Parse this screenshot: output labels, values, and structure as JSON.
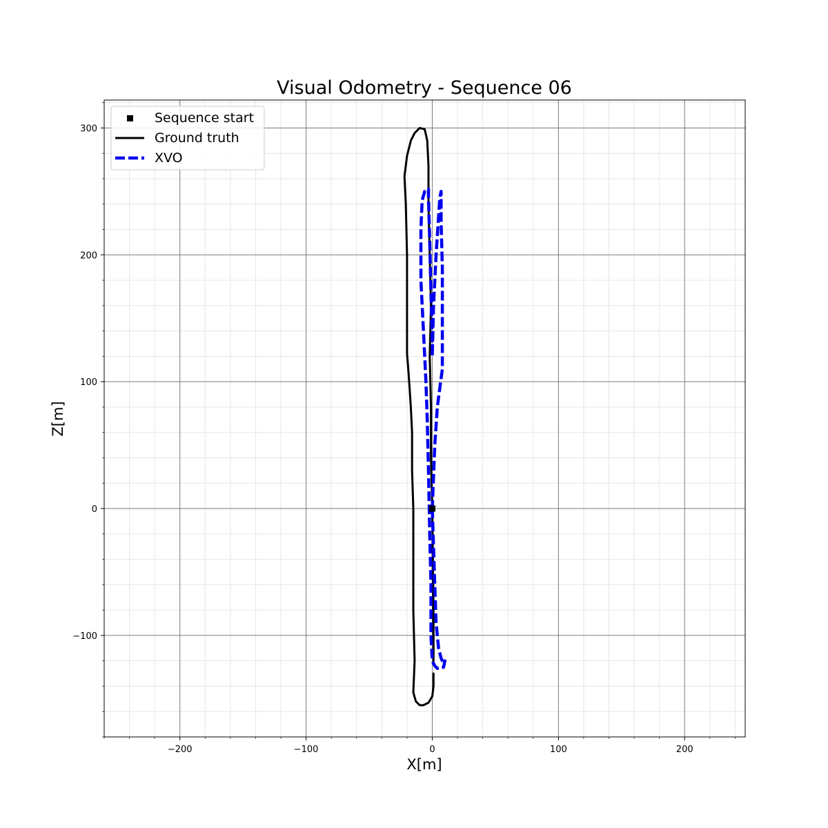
{
  "chart_data": {
    "type": "line",
    "title": "Visual Odometry - Sequence 06",
    "xlabel": "X[m]",
    "ylabel": "Z[m]",
    "xlim": [
      -260,
      248
    ],
    "ylim": [
      -180,
      322
    ],
    "x_ticks": [
      -200,
      -100,
      0,
      100,
      200
    ],
    "y_ticks": [
      -100,
      0,
      100,
      200,
      300
    ],
    "x_tick_labels": [
      "−200",
      "−100",
      "0",
      "100",
      "200"
    ],
    "y_tick_labels": [
      "−100",
      "0",
      "100",
      "200",
      "300"
    ],
    "grid": "major and minor",
    "legend_position": "top-left",
    "sequence_start": {
      "name": "Sequence start",
      "x": 0,
      "y": 0,
      "color": "#000000"
    },
    "series": [
      {
        "name": "Ground truth",
        "color": "#000000",
        "style": "solid",
        "x": [
          0,
          0.5,
          1,
          1,
          0,
          -1,
          -1,
          -2,
          -1,
          -2,
          -3,
          -3,
          -4,
          -6,
          -10,
          -14,
          -17,
          -20,
          -22,
          -21,
          -20,
          -20,
          -20,
          -19,
          -18,
          -17,
          -16,
          -16,
          -15,
          -15,
          -15,
          -14,
          -15,
          -13,
          -10,
          -7,
          -3,
          0,
          1,
          1
        ],
        "y": [
          0,
          -40,
          -80,
          -120,
          0,
          40,
          80,
          120,
          160,
          200,
          240,
          270,
          290,
          299,
          300,
          296,
          290,
          278,
          262,
          240,
          200,
          160,
          122,
          110,
          95,
          80,
          60,
          30,
          0,
          -40,
          -80,
          -120,
          -145,
          -152,
          -155,
          -155,
          -153,
          -148,
          -140,
          -130
        ]
      },
      {
        "name": "XVO",
        "color": "#0000ee",
        "style": "dashed",
        "x": [
          0,
          1,
          2,
          3,
          5,
          7,
          9,
          10,
          9,
          7,
          4,
          2,
          0,
          -1,
          -1,
          -2,
          -3,
          -4,
          -5,
          -7,
          -9,
          -9,
          -8,
          -6,
          -4,
          -3,
          -3,
          -2,
          -1,
          0,
          0,
          1,
          3,
          5,
          6,
          7,
          7,
          8,
          8,
          8,
          6,
          4,
          2,
          0
        ],
        "y": [
          0,
          -30,
          -60,
          -90,
          -110,
          -118,
          -122,
          -120,
          -125,
          -126,
          -126,
          -124,
          -120,
          -100,
          -60,
          -20,
          30,
          70,
          100,
          140,
          180,
          220,
          243,
          250,
          252,
          252,
          245,
          210,
          170,
          130,
          120,
          160,
          200,
          230,
          245,
          250,
          225,
          190,
          150,
          110,
          95,
          80,
          50,
          0
        ]
      }
    ]
  }
}
